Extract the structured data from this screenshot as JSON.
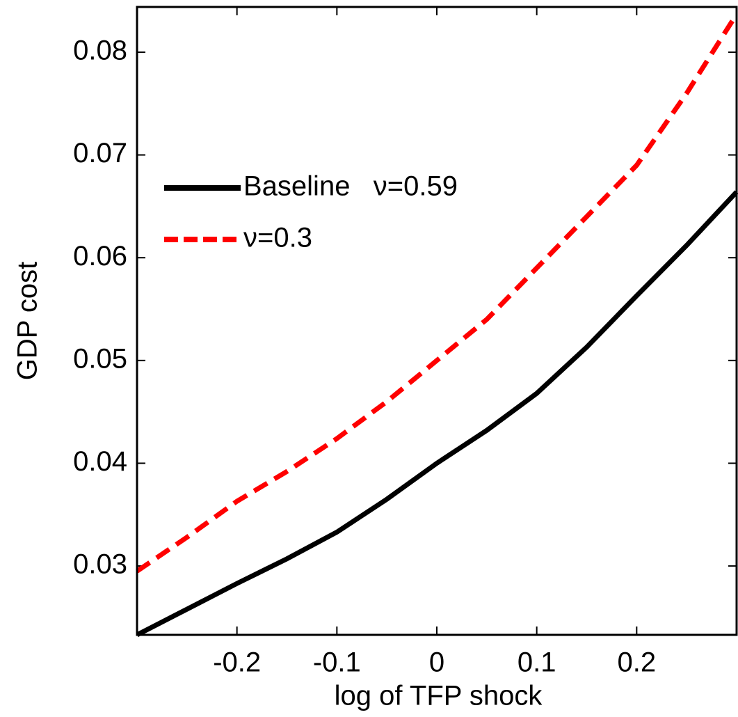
{
  "chart_data": {
    "type": "line",
    "x_label": "log of TFP shock",
    "y_label": "GDP cost",
    "x": [
      -0.3,
      -0.25,
      -0.2,
      -0.15,
      -0.1,
      -0.05,
      0,
      0.05,
      0.1,
      0.15,
      0.2,
      0.25,
      0.3
    ],
    "series": [
      {
        "name": "Baseline   ν=0.59",
        "color": "#000000",
        "dash": "solid",
        "values": [
          0.0233,
          0.0258,
          0.0283,
          0.0307,
          0.0333,
          0.0365,
          0.04,
          0.0432,
          0.0468,
          0.0513,
          0.0563,
          0.0612,
          0.0664
        ]
      },
      {
        "name": "ν=0.3",
        "color": "#ff0000",
        "dash": "dashed",
        "values": [
          0.0295,
          0.0328,
          0.0363,
          0.0392,
          0.0424,
          0.046,
          0.05,
          0.054,
          0.059,
          0.064,
          0.069,
          0.076,
          0.0837
        ]
      }
    ],
    "xlim": [
      -0.3,
      0.3
    ],
    "ylim": [
      0.0233,
      0.0844
    ],
    "xticks": [
      -0.2,
      -0.1,
      0,
      0.1,
      0.2
    ],
    "yticks": [
      0.03,
      0.04,
      0.05,
      0.06,
      0.07,
      0.08
    ],
    "grid": false,
    "legend": "upper left"
  }
}
